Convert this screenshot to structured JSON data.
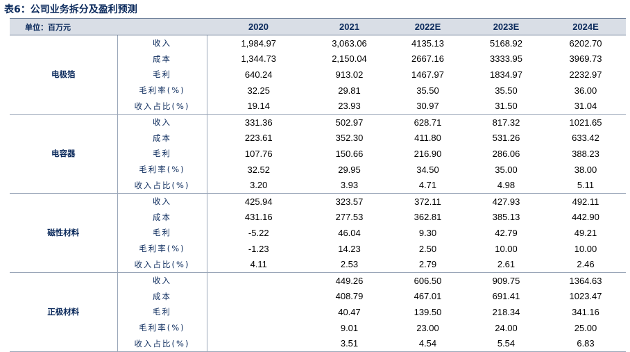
{
  "title": "表6：公司业务拆分及盈利预测",
  "header": {
    "unit": "单位：百万元",
    "years": [
      "2020",
      "2021",
      "2022E",
      "2023E",
      "2024E"
    ]
  },
  "segments": [
    {
      "name": "电极箔",
      "rows": [
        {
          "metric": "收入",
          "values": [
            "1,984.97",
            "3,063.06",
            "4135.13",
            "5168.92",
            "6202.70"
          ]
        },
        {
          "metric": "成本",
          "values": [
            "1,344.73",
            "2,150.04",
            "2667.16",
            "3333.95",
            "3969.73"
          ]
        },
        {
          "metric": "毛利",
          "values": [
            "640.24",
            "913.02",
            "1467.97",
            "1834.97",
            "2232.97"
          ]
        },
        {
          "metric": "毛利率(%)",
          "values": [
            "32.25",
            "29.81",
            "35.50",
            "35.50",
            "36.00"
          ]
        },
        {
          "metric": "收入占比(%)",
          "values": [
            "19.14",
            "23.93",
            "30.97",
            "31.50",
            "31.04"
          ]
        }
      ]
    },
    {
      "name": "电容器",
      "rows": [
        {
          "metric": "收入",
          "values": [
            "331.36",
            "502.97",
            "628.71",
            "817.32",
            "1021.65"
          ]
        },
        {
          "metric": "成本",
          "values": [
            "223.61",
            "352.30",
            "411.80",
            "531.26",
            "633.42"
          ]
        },
        {
          "metric": "毛利",
          "values": [
            "107.76",
            "150.66",
            "216.90",
            "286.06",
            "388.23"
          ]
        },
        {
          "metric": "毛利率(%)",
          "values": [
            "32.52",
            "29.95",
            "34.50",
            "35.00",
            "38.00"
          ]
        },
        {
          "metric": "收入占比(%)",
          "values": [
            "3.20",
            "3.93",
            "4.71",
            "4.98",
            "5.11"
          ]
        }
      ]
    },
    {
      "name": "磁性材料",
      "rows": [
        {
          "metric": "收入",
          "values": [
            "425.94",
            "323.57",
            "372.11",
            "427.93",
            "492.11"
          ]
        },
        {
          "metric": "成本",
          "values": [
            "431.16",
            "277.53",
            "362.81",
            "385.13",
            "442.90"
          ]
        },
        {
          "metric": "毛利",
          "values": [
            "-5.22",
            "46.04",
            "9.30",
            "42.79",
            "49.21"
          ]
        },
        {
          "metric": "毛利率(%)",
          "values": [
            "-1.23",
            "14.23",
            "2.50",
            "10.00",
            "10.00"
          ]
        },
        {
          "metric": "收入占比(%)",
          "values": [
            "4.11",
            "2.53",
            "2.79",
            "2.61",
            "2.46"
          ]
        }
      ]
    },
    {
      "name": "正极材料",
      "rows": [
        {
          "metric": "收入",
          "values": [
            "",
            "449.26",
            "606.50",
            "909.75",
            "1364.63"
          ]
        },
        {
          "metric": "成本",
          "values": [
            "",
            "408.79",
            "467.01",
            "691.41",
            "1023.47"
          ]
        },
        {
          "metric": "毛利",
          "values": [
            "",
            "40.47",
            "139.50",
            "218.34",
            "341.16"
          ]
        },
        {
          "metric": "毛利率(%)",
          "values": [
            "",
            "9.01",
            "23.00",
            "24.00",
            "25.00"
          ]
        },
        {
          "metric": "收入占比(%)",
          "values": [
            "",
            "3.51",
            "4.54",
            "5.54",
            "6.83"
          ]
        }
      ]
    }
  ]
}
